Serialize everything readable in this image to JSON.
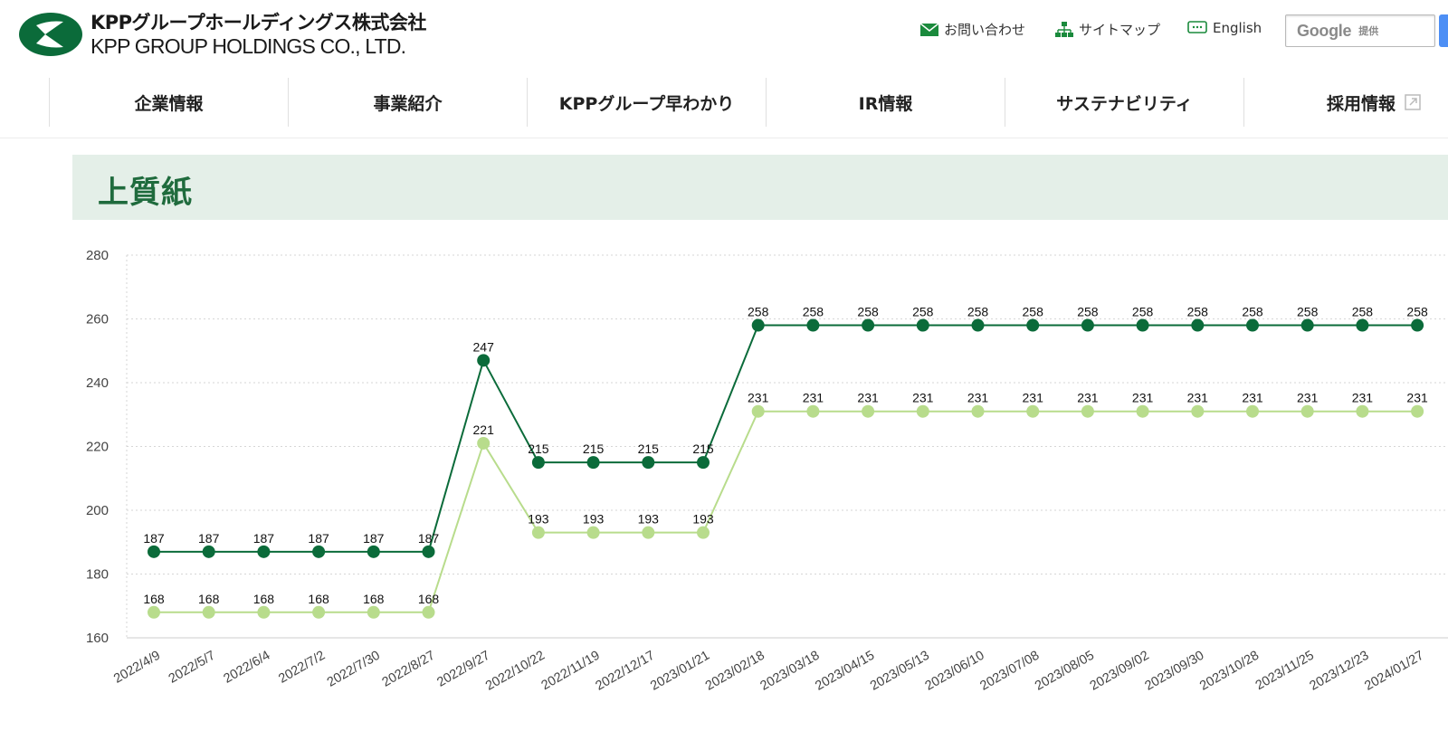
{
  "header": {
    "company_ja": "KPPグループホールディングス株式会社",
    "company_en": "KPP GROUP HOLDINGS CO., LTD.",
    "contact_label": "お問い合わせ",
    "sitemap_label": "サイトマップ",
    "english_label": "English",
    "search_google": "Google",
    "search_provided": "提供"
  },
  "nav": {
    "items": [
      "企業情報",
      "事業紹介",
      "KPPグループ早わかり",
      "IR情報",
      "サステナビリティ",
      "採用情報"
    ]
  },
  "section": {
    "title": "上質紙"
  },
  "colors": {
    "brand": "#0b6b3a",
    "dark_series": "#0b6b3a",
    "light_series": "#b8dc8c",
    "band": "#e4efe8"
  },
  "chart_data": {
    "type": "line",
    "title": "上質紙",
    "ylim": [
      160,
      280
    ],
    "yticks": [
      160,
      180,
      200,
      220,
      240,
      260,
      280
    ],
    "categories": [
      "2022/4/9",
      "2022/5/7",
      "2022/6/4",
      "2022/7/2",
      "2022/7/30",
      "2022/8/27",
      "2022/9/27",
      "2022/10/22",
      "2022/11/19",
      "2022/12/17",
      "2023/01/21",
      "2023/02/18",
      "2023/03/18",
      "2023/04/15",
      "2023/05/13",
      "2023/06/10",
      "2023/07/08",
      "2023/08/05",
      "2023/09/02",
      "2023/09/30",
      "2023/10/28",
      "2023/11/25",
      "2023/12/23",
      "2024/01/27"
    ],
    "series": [
      {
        "name": "dark",
        "color": "#0b6b3a",
        "values": [
          187,
          187,
          187,
          187,
          187,
          187,
          247,
          215,
          215,
          215,
          215,
          258,
          258,
          258,
          258,
          258,
          258,
          258,
          258,
          258,
          258,
          258,
          258,
          258
        ]
      },
      {
        "name": "light",
        "color": "#b8dc8c",
        "values": [
          168,
          168,
          168,
          168,
          168,
          168,
          221,
          193,
          193,
          193,
          193,
          231,
          231,
          231,
          231,
          231,
          231,
          231,
          231,
          231,
          231,
          231,
          231,
          231
        ]
      }
    ],
    "grid": true
  }
}
